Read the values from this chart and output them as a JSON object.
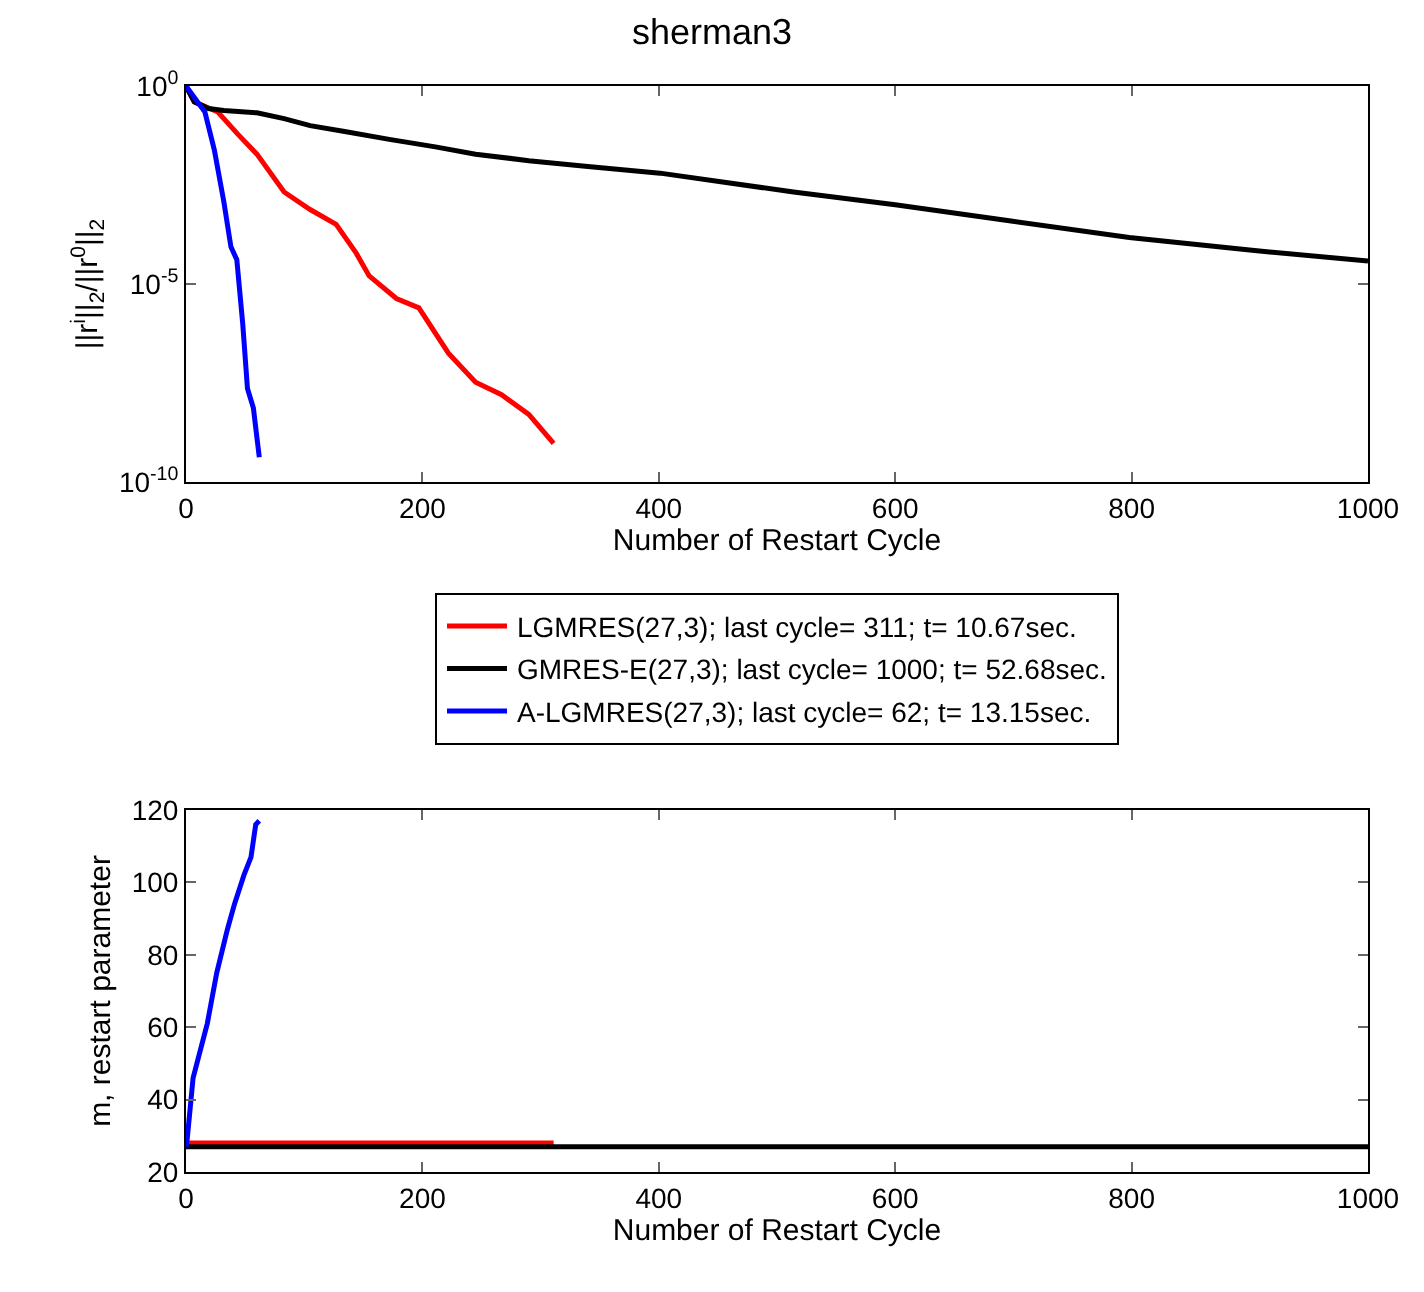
{
  "chart_data": [
    {
      "type": "line",
      "title": "sherman3",
      "xlabel": "Number of Restart Cycle",
      "ylabel": "||r$^{i}$||$_{2}$/||r$^{0}$||$_{2}$",
      "log": "y",
      "xlim": [
        0,
        1000
      ],
      "xticks": [
        0,
        200,
        400,
        600,
        800,
        1000
      ],
      "ylim": [
        1e-10,
        1
      ],
      "yticks": [
        {
          "value": 1,
          "label": "10$^{0}$"
        },
        {
          "value": 1e-05,
          "label": "10$^{-5}$"
        },
        {
          "value": 1e-10,
          "label": "10$^{-10}$"
        }
      ],
      "grid": false,
      "legend": "bottom",
      "line_style": "solid",
      "marker": "none",
      "series": [
        {
          "name": "LGMRES(27,3); last cycle= 311; t= 10.67sec.",
          "color": "#ff0000",
          "x": [
            0,
            7,
            27,
            44,
            60,
            83,
            105,
            127,
            144,
            155,
            178,
            197,
            222,
            245,
            267,
            290,
            311
          ],
          "values": [
            1,
            0.4,
            0.22,
            0.06,
            0.019,
            0.0021,
            0.00076,
            0.00032,
            6e-05,
            1.6e-05,
            4.3e-06,
            2.5e-06,
            1.8e-07,
            3.3e-08,
            1.6e-08,
            5.1e-09,
            9.5e-10
          ]
        },
        {
          "name": "GMRES-E(27,3); last cycle= 1000; t= 52.68sec.",
          "color": "#000000",
          "x": [
            0,
            7,
            19,
            32,
            60,
            83,
            105,
            133,
            172,
            211,
            245,
            290,
            340,
            401,
            514,
            600,
            698,
            798,
            904,
            1000
          ],
          "values": [
            1,
            0.4,
            0.27,
            0.24,
            0.21,
            0.15,
            0.1,
            0.072,
            0.045,
            0.029,
            0.019,
            0.013,
            0.0093,
            0.0063,
            0.0021,
            0.001,
            0.00039,
            0.00015,
            7e-05,
            3.8e-05
          ]
        },
        {
          "name": "A-LGMRES(27,3); last cycle= 62; t= 13.15sec.",
          "color": "#0000ff",
          "x": [
            0,
            16,
            24,
            32,
            38,
            43,
            48,
            52,
            57,
            62
          ],
          "values": [
            1,
            0.22,
            0.024,
            0.0012,
            8.7e-05,
            4.1e-05,
            9.8e-07,
            2.3e-08,
            7.4e-09,
            4.2e-10
          ]
        }
      ]
    },
    {
      "type": "line",
      "xlabel": "Number of Restart Cycle",
      "ylabel": "m, restart parameter",
      "xlim": [
        0,
        1000
      ],
      "xticks": [
        0,
        200,
        400,
        600,
        800,
        1000
      ],
      "ylim": [
        20,
        120
      ],
      "yticks": [
        20,
        40,
        60,
        80,
        100,
        120
      ],
      "grid": false,
      "legend": false,
      "line_style": "solid",
      "marker": "none",
      "series": [
        {
          "color": "#ff0000",
          "x": [
            0,
            311
          ],
          "values": [
            28,
            28
          ]
        },
        {
          "color": "#000000",
          "x": [
            0,
            1000
          ],
          "values": [
            27,
            27
          ]
        },
        {
          "color": "#0000ff",
          "x": [
            0,
            1,
            6,
            18,
            26,
            35,
            41,
            49,
            55,
            59,
            62
          ],
          "values": [
            27,
            29,
            46,
            61,
            75,
            87,
            94,
            102,
            107,
            116,
            117
          ]
        }
      ]
    }
  ]
}
